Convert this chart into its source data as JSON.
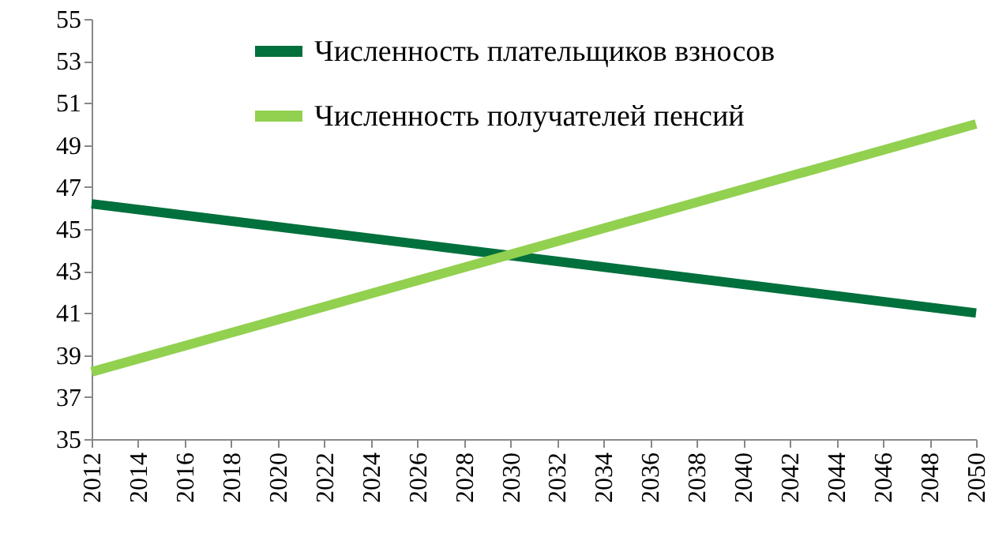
{
  "chart_data": {
    "type": "line",
    "x": [
      2012,
      2050
    ],
    "series": [
      {
        "name": "Численность плательщиков взносов",
        "color": "#00703c",
        "values": [
          46.2,
          41
        ]
      },
      {
        "name": "Численность получателей пенсий",
        "color": "#92d050",
        "values": [
          38.2,
          50
        ]
      }
    ],
    "xlim": [
      2012,
      2050
    ],
    "xticks": [
      2012,
      2014,
      2016,
      2018,
      2020,
      2022,
      2024,
      2026,
      2028,
      2030,
      2032,
      2034,
      2036,
      2038,
      2040,
      2042,
      2044,
      2046,
      2048,
      2050
    ],
    "ylim": [
      35,
      55
    ],
    "yticks": [
      35,
      37,
      39,
      41,
      43,
      45,
      47,
      49,
      51,
      53,
      55
    ],
    "grid": false,
    "legend": "top",
    "marker": "none",
    "line_style": "solid"
  }
}
